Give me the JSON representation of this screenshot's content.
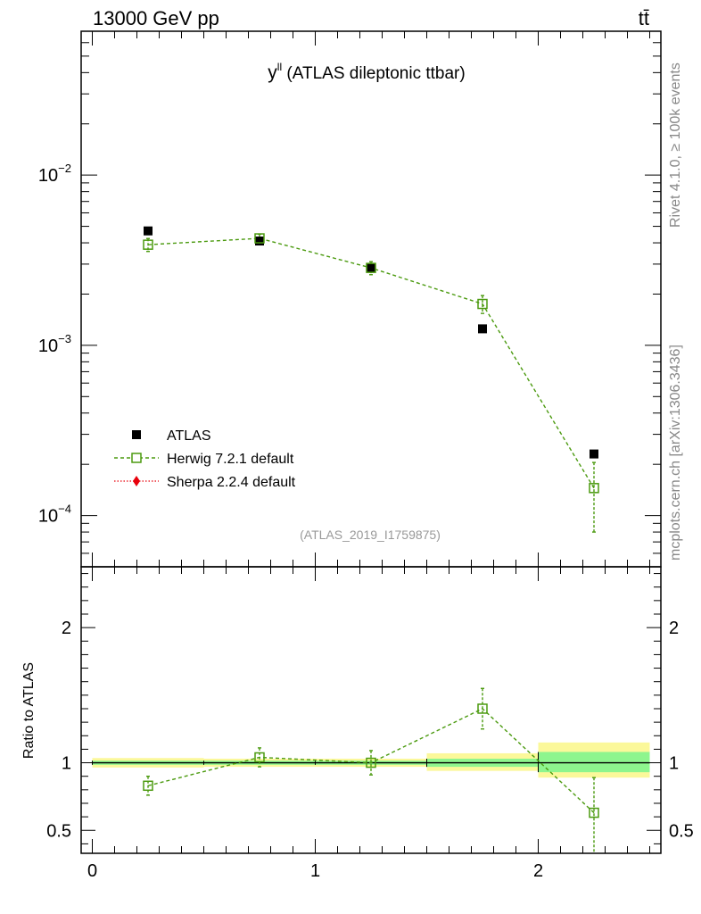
{
  "header": {
    "energy_label": "13000 GeV pp",
    "process_label": "tt̄"
  },
  "side_labels": {
    "rivet": "Rivet 4.1.0, ≥ 100k events",
    "mcplots": "mcplots.cern.ch [arXiv:1306.3436]"
  },
  "chart_data": [
    {
      "type": "scatter",
      "panel": "main",
      "title_main": "y",
      "title_sup": "ll",
      "title_rest": " (ATLAS dileptonic ttbar)",
      "analysis_id": "(ATLAS_2019_I1759875)",
      "yscale": "log",
      "ylim": [
        5e-05,
        0.07
      ],
      "xlim": [
        -0.05,
        2.55
      ],
      "y_ticks": [
        {
          "value": 0.01,
          "base": "10",
          "exp": "−2"
        },
        {
          "value": 0.001,
          "base": "10",
          "exp": "−3"
        },
        {
          "value": 0.0001,
          "base": "10",
          "exp": "−4"
        }
      ],
      "legend": {
        "position": "bottom-left",
        "items": [
          {
            "label": "ATLAS",
            "marker": "filled-square",
            "color": "#000000"
          },
          {
            "label": "Herwig 7.2.1 default",
            "marker": "open-square-dashed",
            "color": "#4b9a0f"
          },
          {
            "label": "Sherpa 2.2.4 default",
            "marker": "diamond-dotted",
            "color": "#e8000b"
          }
        ]
      },
      "series": [
        {
          "name": "ATLAS",
          "color": "#000000",
          "x": [
            0.25,
            0.75,
            1.25,
            1.75,
            2.25
          ],
          "y": [
            0.0047,
            0.0041,
            0.00285,
            0.00125,
            0.00023
          ]
        },
        {
          "name": "Herwig 7.2.1 default",
          "color": "#4b9a0f",
          "x": [
            0.25,
            0.75,
            1.25,
            1.75,
            2.25
          ],
          "y": [
            0.0039,
            0.00425,
            0.00285,
            0.00175,
            0.000145
          ],
          "y_err_lo": [
            0.00034,
            0.00025,
            0.00025,
            0.00021,
            6.5e-05
          ],
          "y_err_hi": [
            0.00034,
            0.00025,
            0.00025,
            0.00021,
            6e-05
          ]
        }
      ]
    },
    {
      "type": "scatter",
      "panel": "ratio",
      "ylabel": "Ratio to ATLAS",
      "ylim": [
        0.33,
        2.45
      ],
      "xlim": [
        -0.05,
        2.55
      ],
      "reference_line": 1.0,
      "y_ticks": [
        {
          "value": 2,
          "label": "2"
        },
        {
          "value": 1,
          "label": "1"
        },
        {
          "value": 0.5,
          "label": "0.5"
        }
      ],
      "x_ticks": [
        {
          "value": 0,
          "label": "0"
        },
        {
          "value": 1,
          "label": "1"
        },
        {
          "value": 2,
          "label": "2"
        }
      ],
      "bands": [
        {
          "x0": 0.0,
          "x1": 0.5,
          "stat_lo": 0.985,
          "stat_hi": 1.015,
          "total_lo": 0.965,
          "total_hi": 1.035
        },
        {
          "x0": 0.5,
          "x1": 1.0,
          "stat_lo": 0.985,
          "stat_hi": 1.015,
          "total_lo": 0.97,
          "total_hi": 1.03
        },
        {
          "x0": 1.0,
          "x1": 1.5,
          "stat_lo": 0.985,
          "stat_hi": 1.015,
          "total_lo": 0.97,
          "total_hi": 1.03
        },
        {
          "x0": 1.5,
          "x1": 2.0,
          "stat_lo": 0.97,
          "stat_hi": 1.03,
          "total_lo": 0.94,
          "total_hi": 1.07
        },
        {
          "x0": 2.0,
          "x1": 2.5,
          "stat_lo": 0.93,
          "stat_hi": 1.08,
          "total_lo": 0.89,
          "total_hi": 1.15
        }
      ],
      "band_colors": {
        "stat": "#8ef58e",
        "total": "#fbf89a"
      },
      "series": [
        {
          "name": "Herwig 7.2.1 default",
          "color": "#4b9a0f",
          "x": [
            0.25,
            0.75,
            1.25,
            1.75,
            2.25
          ],
          "y": [
            0.83,
            1.04,
            1.0,
            1.4,
            0.63
          ],
          "y_err_lo": [
            0.07,
            0.07,
            0.09,
            0.15,
            0.3
          ],
          "y_err_hi": [
            0.07,
            0.07,
            0.09,
            0.15,
            0.26
          ]
        }
      ]
    }
  ]
}
